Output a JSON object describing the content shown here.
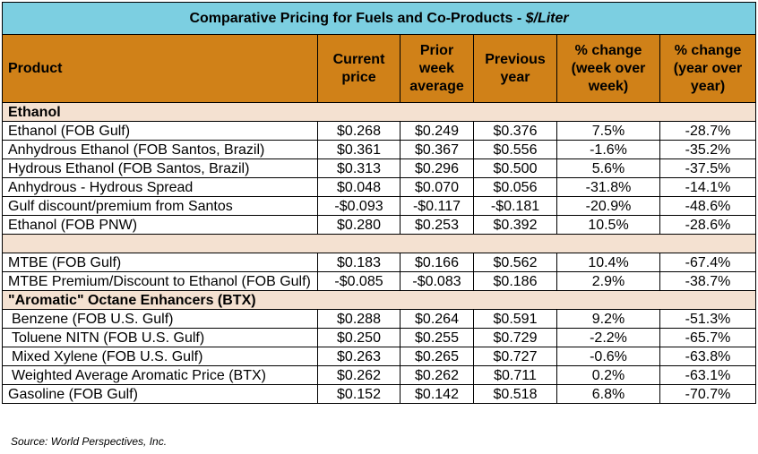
{
  "title": {
    "main": "Comparative Pricing for Fuels and Co-Products - ",
    "unit": "$/Liter"
  },
  "headers": [
    "Product",
    "Current price",
    "Prior week average",
    "Previous year",
    "% change (week over week)",
    "% change (year over year)"
  ],
  "sections": {
    "ethanol": "Ethanol",
    "btx": "\"Aromatic\" Octane Enhancers (BTX)"
  },
  "ethanol_rows": [
    [
      "Ethanol (FOB Gulf)",
      "$0.268",
      "$0.249",
      "$0.376",
      "7.5%",
      "-28.7%"
    ],
    [
      "Anhydrous Ethanol (FOB Santos, Brazil)",
      "$0.361",
      "$0.367",
      "$0.556",
      "-1.6%",
      "-35.2%"
    ],
    [
      "Hydrous Ethanol (FOB Santos, Brazil)",
      "$0.313",
      "$0.296",
      "$0.500",
      "5.6%",
      "-37.5%"
    ],
    [
      "Anhydrous - Hydrous Spread",
      "$0.048",
      "$0.070",
      "$0.056",
      "-31.8%",
      "-14.1%"
    ],
    [
      "Gulf discount/premium from Santos",
      "-$0.093",
      "-$0.117",
      "-$0.181",
      "-20.9%",
      "-48.6%"
    ],
    [
      "Ethanol (FOB PNW)",
      "$0.280",
      "$0.253",
      "$0.392",
      "10.5%",
      "-28.6%"
    ]
  ],
  "mtbe_rows": [
    [
      "MTBE (FOB Gulf)",
      "$0.183",
      "$0.166",
      "$0.562",
      "10.4%",
      "-67.4%"
    ],
    [
      "MTBE Premium/Discount to Ethanol (FOB Gulf)",
      "-$0.085",
      "-$0.083",
      "$0.186",
      "2.9%",
      "-38.7%"
    ]
  ],
  "btx_rows": [
    [
      "Benzene (FOB U.S. Gulf)",
      "$0.288",
      "$0.264",
      "$0.591",
      "9.2%",
      "-51.3%"
    ],
    [
      "Toluene NITN (FOB U.S. Gulf)",
      "$0.250",
      "$0.255",
      "$0.729",
      "-2.2%",
      "-65.7%"
    ],
    [
      "Mixed Xylene (FOB U.S. Gulf)",
      "$0.263",
      "$0.265",
      "$0.727",
      "-0.6%",
      "-63.8%"
    ],
    [
      "Weighted Average Aromatic Price (BTX)",
      "$0.262",
      "$0.262",
      "$0.711",
      "0.2%",
      "-63.1%"
    ]
  ],
  "gasoline_rows": [
    [
      "Gasoline (FOB Gulf)",
      "$0.152",
      "$0.142",
      "$0.518",
      "6.8%",
      "-70.7%"
    ]
  ],
  "source": "Source: World Perspectives, Inc."
}
